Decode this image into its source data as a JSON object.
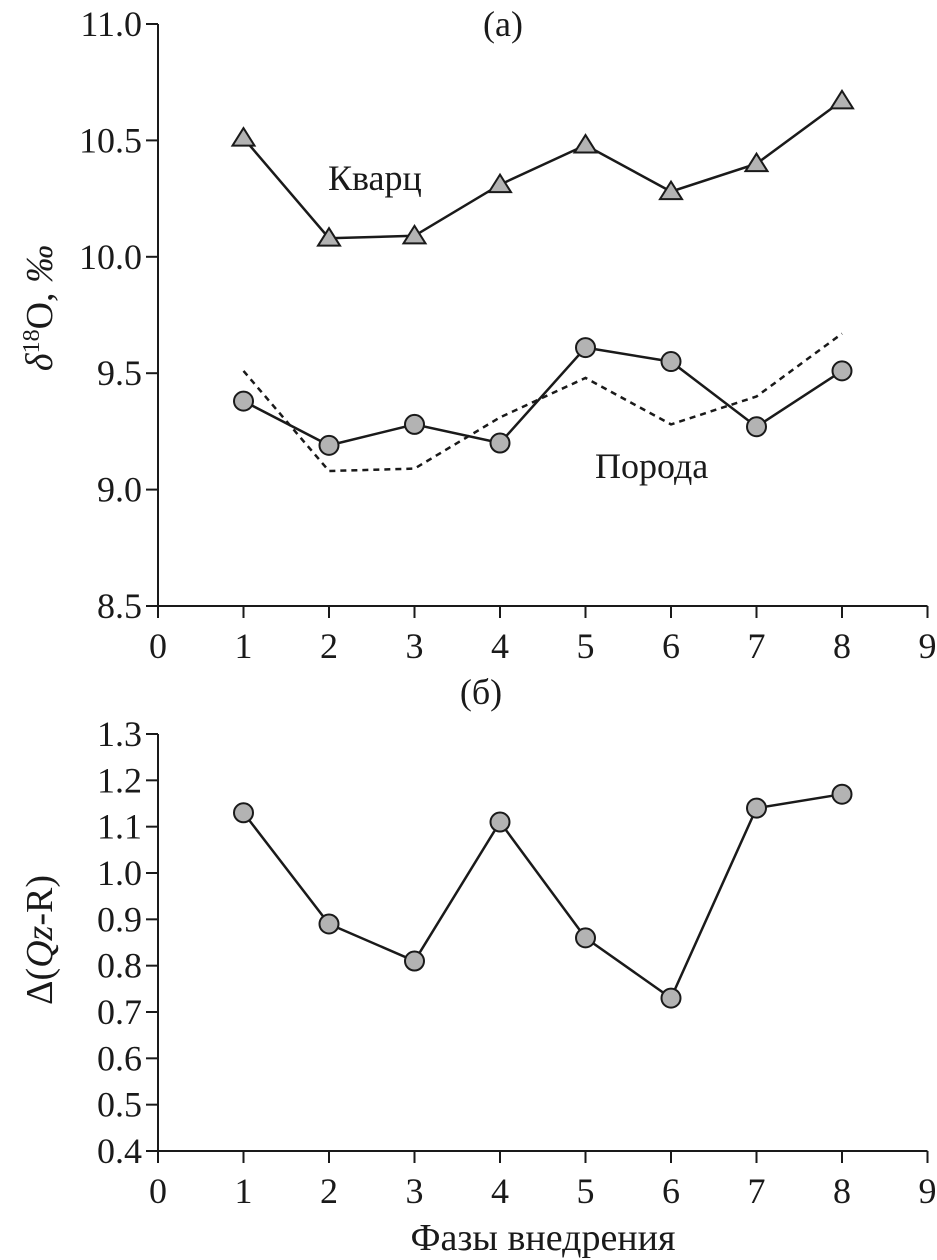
{
  "chart_data": [
    {
      "type": "line",
      "panel_label": "(a)",
      "ylabel": "δ18O, ‰",
      "ylabel_parts": {
        "delta": "δ",
        "sup": "18",
        "rest": "O, ",
        "unit": "‰"
      },
      "xlim": [
        0,
        9
      ],
      "ylim": [
        8.5,
        11.0
      ],
      "x_ticks": [
        0,
        1,
        2,
        3,
        4,
        5,
        6,
        7,
        8,
        9
      ],
      "y_ticks": [
        "8.5",
        "9.0",
        "9.5",
        "10.0",
        "10.5",
        "11.0"
      ],
      "grid": false,
      "series": [
        {
          "name": "Кварц",
          "marker": "triangle",
          "style": "solid",
          "x": [
            1,
            2,
            3,
            4,
            5,
            6,
            7,
            8
          ],
          "y": [
            10.51,
            10.08,
            10.09,
            10.31,
            10.48,
            10.28,
            10.4,
            10.67
          ]
        },
        {
          "name": "Порода",
          "marker": "circle",
          "style": "solid",
          "x": [
            1,
            2,
            3,
            4,
            5,
            6,
            7,
            8
          ],
          "y": [
            9.38,
            9.19,
            9.28,
            9.2,
            9.61,
            9.55,
            9.27,
            9.51
          ]
        },
        {
          "marker": "none",
          "style": "dotted",
          "x": [
            1,
            2,
            3,
            4,
            5,
            6,
            7,
            8
          ],
          "y": [
            9.51,
            9.08,
            9.09,
            9.31,
            9.48,
            9.28,
            9.4,
            9.67
          ]
        }
      ],
      "annotations": [
        "Кварц",
        "Порода"
      ]
    },
    {
      "type": "line",
      "panel_label": "(б)",
      "ylabel": "Δ(Qz-R)",
      "ylabel_parts": {
        "pre": "Δ(",
        "italic": "Qz",
        "post": "-R)"
      },
      "xlabel": "Фазы внедрения",
      "xlim": [
        0,
        9
      ],
      "ylim": [
        0.4,
        1.3
      ],
      "x_ticks": [
        0,
        1,
        2,
        3,
        4,
        5,
        6,
        7,
        8,
        9
      ],
      "y_ticks": [
        "0.4",
        "0.5",
        "0.6",
        "0.7",
        "0.8",
        "0.9",
        "1.0",
        "1.1",
        "1.2",
        "1.3"
      ],
      "grid": false,
      "series": [
        {
          "marker": "circle",
          "style": "solid",
          "x": [
            1,
            2,
            3,
            4,
            5,
            6,
            7,
            8
          ],
          "y": [
            1.13,
            0.89,
            0.81,
            1.11,
            0.86,
            0.73,
            1.14,
            1.17
          ]
        }
      ]
    }
  ]
}
